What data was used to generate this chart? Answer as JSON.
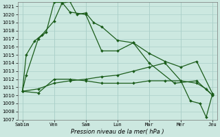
{
  "xlabel": "Pression niveau de la mer( hPa )",
  "x_labels": [
    "Sabim",
    "Ven",
    "Sam",
    "Lun",
    "Mar",
    "Mer",
    "Jeu"
  ],
  "ylim": [
    1007,
    1021.5
  ],
  "yticks": [
    1007,
    1008,
    1009,
    1010,
    1011,
    1012,
    1013,
    1014,
    1015,
    1016,
    1017,
    1018,
    1019,
    1020,
    1021
  ],
  "bg_color": "#cce8e0",
  "grid_color": "#aacfc8",
  "line_color": "#1a5c1a",
  "markersize": 2.0,
  "linewidth": 0.9,
  "line1_x": [
    0,
    0.12,
    0.38,
    0.62,
    1.0,
    1.25,
    1.5,
    1.72,
    2.0,
    2.25,
    2.5,
    3.0,
    3.5,
    4.0,
    4.5,
    5.0,
    5.5,
    6.0
  ],
  "line1_y": [
    1010.5,
    1015.0,
    1016.7,
    1017.5,
    1019.2,
    1021.4,
    1021.6,
    1020.0,
    1020.2,
    1019.0,
    1018.5,
    1016.8,
    1016.5,
    1015.2,
    1014.2,
    1013.5,
    1014.2,
    1010.2
  ],
  "line2_x": [
    0,
    0.12,
    0.5,
    0.75,
    1.0,
    1.25,
    1.5,
    2.0,
    2.5,
    3.0,
    3.5,
    4.0,
    4.8,
    5.5,
    6.0
  ],
  "line2_y": [
    1010.5,
    1012.5,
    1017.0,
    1017.8,
    1021.5,
    1021.5,
    1020.3,
    1020.0,
    1015.5,
    1015.5,
    1016.5,
    1014.0,
    1011.5,
    1011.8,
    1010.0
  ],
  "line3_x": [
    0,
    0.5,
    1.0,
    1.5,
    2.0,
    2.5,
    3.0,
    3.5,
    4.0,
    4.5,
    5.0,
    5.5,
    5.8,
    6.0
  ],
  "line3_y": [
    1010.5,
    1010.3,
    1012.0,
    1012.0,
    1011.8,
    1011.5,
    1011.5,
    1011.5,
    1011.8,
    1011.8,
    1011.8,
    1011.5,
    1010.8,
    1010.0
  ],
  "line4_x": [
    0,
    0.5,
    1.0,
    1.5,
    2.0,
    2.5,
    3.0,
    3.5,
    4.0,
    4.5,
    5.0,
    5.3,
    5.6,
    5.8,
    6.0
  ],
  "line4_y": [
    1010.5,
    1010.8,
    1011.5,
    1011.8,
    1012.0,
    1012.3,
    1012.5,
    1013.0,
    1013.5,
    1014.0,
    1011.8,
    1009.3,
    1009.0,
    1007.3,
    1010.2
  ]
}
